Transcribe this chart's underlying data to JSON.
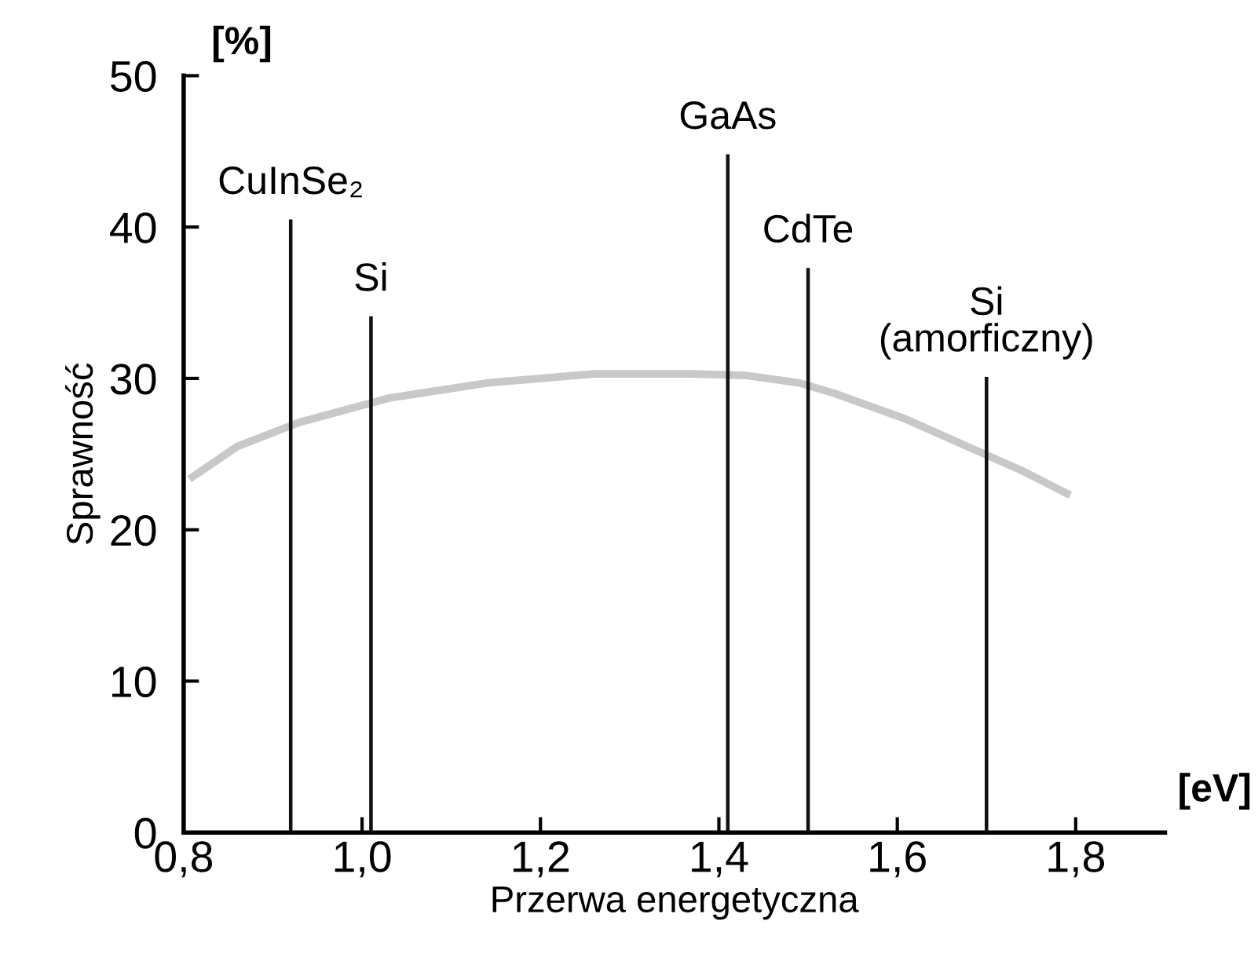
{
  "chart_data": {
    "type": "bar",
    "xlabel": "Przerwa energetyczna",
    "ylabel": "Sprawność",
    "xlim": [
      0.8,
      1.9
    ],
    "xticks": [
      {
        "value": 0.8,
        "label": "0,8"
      },
      {
        "value": 1.0,
        "label": "1,0"
      },
      {
        "value": 1.2,
        "label": "1,2"
      },
      {
        "value": 1.4,
        "label": "1,4"
      },
      {
        "value": 1.6,
        "label": "1,6"
      },
      {
        "value": 1.8,
        "label": "1,8"
      }
    ],
    "ylim": [
      0,
      50
    ],
    "yticks": [
      0,
      10,
      20,
      30,
      40,
      50
    ],
    "grid": false,
    "legend": false,
    "series": [
      {
        "color": "#111111",
        "x": [
          0.92,
          1.01,
          1.41,
          1.5,
          1.7
        ],
        "values": [
          40.5,
          34.1,
          44.8,
          37.3,
          30.1
        ]
      },
      {
        "type": "line",
        "color": "#c8c8c8",
        "marker": "none",
        "line_style": "solid",
        "x": [
          0.81,
          0.86,
          0.93,
          1.03,
          1.14,
          1.26,
          1.37,
          1.43,
          1.49,
          1.53,
          1.61,
          1.69,
          1.74,
          1.79
        ],
        "values": [
          23.5,
          25.5,
          27.1,
          28.7,
          29.7,
          30.3,
          30.3,
          30.2,
          29.7,
          29.0,
          27.3,
          25.2,
          23.9,
          22.4
        ]
      }
    ],
    "annotations": [
      {
        "text": "CuInSe₂",
        "x": 0.92,
        "y": 40.5
      },
      {
        "text": "Si",
        "x": 1.01,
        "y": 34.1
      },
      {
        "text": "GaAs",
        "x": 1.41,
        "y": 44.8
      },
      {
        "text": "CdTe",
        "x": 1.5,
        "y": 37.3
      },
      {
        "text": "Si\n(amorficzny)",
        "x": 1.7,
        "y": 30.1
      },
      "[%]",
      "[eV]"
    ]
  }
}
